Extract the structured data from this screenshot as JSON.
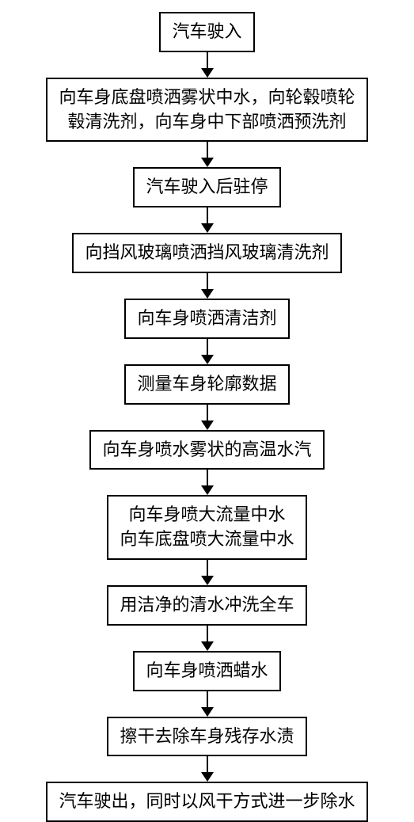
{
  "flowchart": {
    "type": "flowchart",
    "direction": "vertical",
    "background_color": "#ffffff",
    "border_color": "#000000",
    "border_width": 2,
    "font_family": "SimSun",
    "font_size": 22,
    "text_color": "#000000",
    "arrow_color": "#000000",
    "steps": [
      {
        "id": "step1",
        "text": "汽车驶入"
      },
      {
        "id": "step2",
        "text": "向车身底盘喷洒雾状中水，向轮毂喷轮\n毂清洗剂，向车身中下部喷洒预洗剂"
      },
      {
        "id": "step3",
        "text": "汽车驶入后驻停"
      },
      {
        "id": "step4",
        "text": "向挡风玻璃喷洒挡风玻璃清洗剂"
      },
      {
        "id": "step5",
        "text": "向车身喷洒清洁剂"
      },
      {
        "id": "step6",
        "text": "测量车身轮廓数据"
      },
      {
        "id": "step7",
        "text": "向车身喷水雾状的高温水汽"
      },
      {
        "id": "step8",
        "text": "向车身喷大流量中水\n向车底盘喷大流量中水"
      },
      {
        "id": "step9",
        "text": "用洁净的清水冲洗全车"
      },
      {
        "id": "step10",
        "text": "向车身喷洒蜡水"
      },
      {
        "id": "step11",
        "text": "擦干去除车身残存水渍"
      },
      {
        "id": "step12",
        "text": "汽车驶出，同时以风干方式进一步除水"
      }
    ]
  }
}
